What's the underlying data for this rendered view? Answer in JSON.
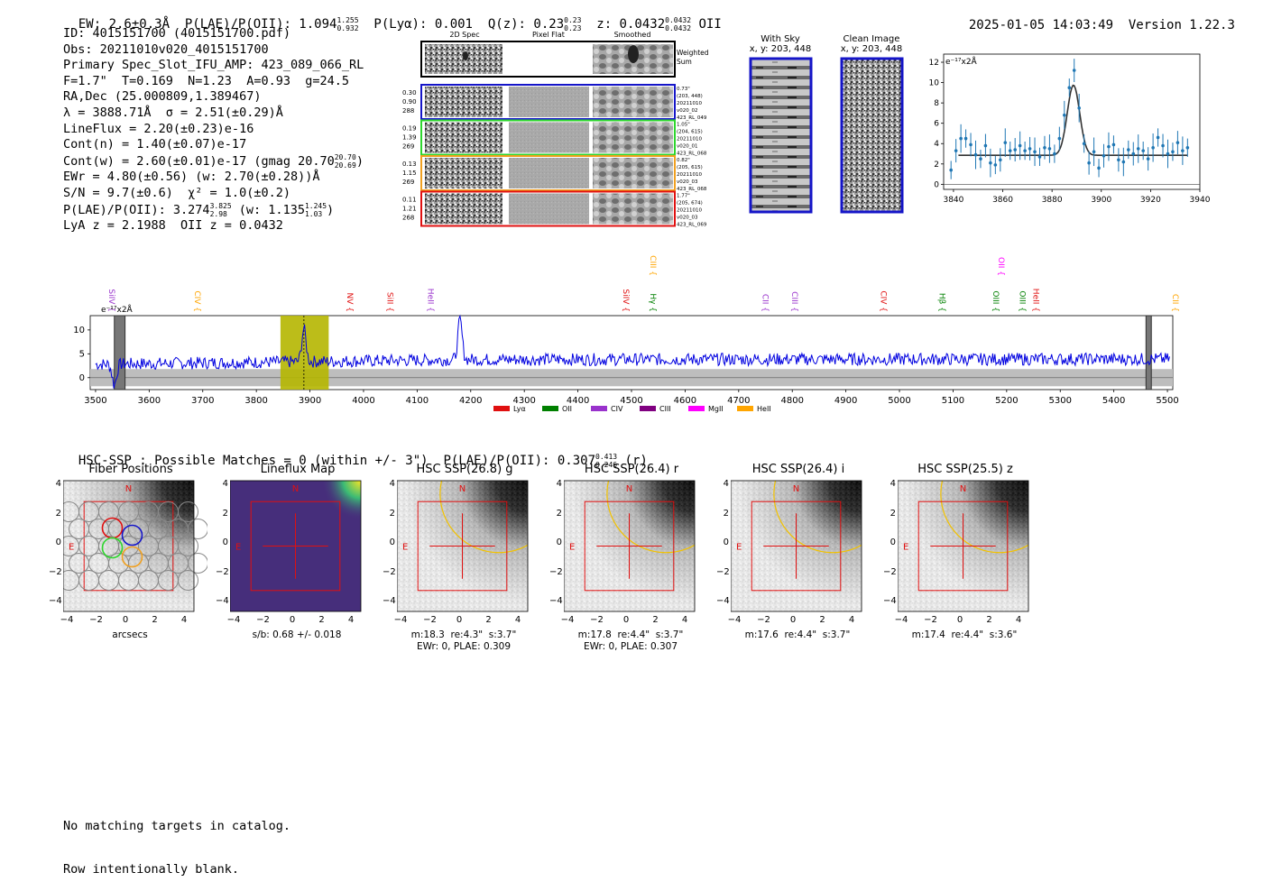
{
  "header": {
    "ew": "EW: 2.6±0.3Å",
    "plae_label": "P(LAE)/P(OII): 1.094",
    "plae_hi": "1.255",
    "plae_lo": "0.932",
    "plya": "P(Lyα): 0.001",
    "qz_label": "Q(z): 0.23",
    "qz_hi": "0.23",
    "qz_lo": "0.23",
    "z_label": "z: 0.0432",
    "z_hi": "0.0432",
    "z_lo": "0.0432",
    "z_line": "OII",
    "timestamp": "2025-01-05 14:03:49",
    "version": "Version 1.22.3"
  },
  "info": {
    "id": "ID: 4015151700 (4015151700.pdf)",
    "obs": "Obs: 20211010v020_4015151700",
    "primary": "Primary Spec_Slot_IFU_AMP: 423_089_066_RL",
    "params": "F=1.7\"  T=0.169  N=1.23  A=0.93  g=24.5",
    "radec": "RA,Dec (25.000809,1.389467)",
    "lambda": "λ = 3888.71Å  σ = 2.51(±0.29)Å",
    "lineflux": "LineFlux = 2.20(±0.23)e-16",
    "contn": "Cont(n) = 1.40(±0.07)e-17",
    "contw": "Cont(w) = 2.60(±0.01)e-17 (gmag 20.70",
    "contw_hi": "20.70",
    "contw_lo": "20.69",
    "ewr": "EWr = 4.80(±0.56) (w: 2.70(±0.28))Å",
    "sn": "S/N = 9.7(±0.6)  χ² = 1.0(±0.2)",
    "plae2": "P(LAE)/P(OII): 3.274",
    "plae2_hi": "3.825",
    "plae2_lo": "2.98",
    "plae2_w": "(w: 1.135",
    "plae2_w_hi": "1.245",
    "plae2_w_lo": "1.03",
    "lyaz": "LyA z = 2.1988  OII z = 0.0432"
  },
  "cutouts": {
    "col_headers": [
      "2D Spec",
      "Pixel Flat",
      "Smoothed"
    ],
    "weighted_label": "Weighted Sum",
    "rows": [
      {
        "left": [
          "0.30",
          "0.90",
          "288"
        ],
        "right": [
          "0.73\"",
          "(203, 448)",
          "20211010",
          "v020_02",
          "423_RL_049"
        ],
        "color": "#1515c8"
      },
      {
        "left": [
          "0.19",
          "1.39",
          "269"
        ],
        "right": [
          "1.05\"",
          "(204, 615)",
          "20211010",
          "v020_01",
          "423_RL_068"
        ],
        "color": "#2ed62e"
      },
      {
        "left": [
          "0.13",
          "1.15",
          "269"
        ],
        "right": [
          "0.82\"",
          "(205, 615)",
          "20211010",
          "v020_03",
          "423_RL_068"
        ],
        "color": "#f0a020"
      },
      {
        "left": [
          "0.11",
          "1.21",
          "268"
        ],
        "right": [
          "1.77\"",
          "(205, 674)",
          "20211010",
          "v020_03",
          "423_RL_069"
        ],
        "color": "#e01010"
      }
    ]
  },
  "sky": {
    "with_sky_title": "With Sky",
    "with_sky_sub": "x, y: 203, 448",
    "clean_title": "Clean Image",
    "clean_sub": "x, y: 203, 448"
  },
  "zoom_chart": {
    "ylabel": "e⁻¹⁷x2Å",
    "xticks": [
      "3840",
      "3860",
      "3880",
      "3900",
      "3920",
      "3940"
    ],
    "yticks": [
      "0",
      "2",
      "4",
      "6",
      "8",
      "10",
      "12"
    ]
  },
  "chart_data": [
    {
      "type": "scatter",
      "xlim": [
        3836,
        3940
      ],
      "ylim": [
        -0.5,
        12.8
      ],
      "x": [
        3839,
        3841,
        3843,
        3845,
        3847,
        3849,
        3851,
        3853,
        3855,
        3857,
        3859,
        3861,
        3863,
        3865,
        3867,
        3869,
        3871,
        3873,
        3875,
        3877,
        3879,
        3881,
        3883,
        3885,
        3887,
        3889,
        3891,
        3893,
        3895,
        3897,
        3899,
        3901,
        3903,
        3905,
        3907,
        3909,
        3911,
        3913,
        3915,
        3917,
        3919,
        3921,
        3923,
        3925,
        3927,
        3929,
        3931,
        3933,
        3935
      ],
      "y": [
        1.4,
        3.3,
        4.5,
        4.5,
        3.9,
        2.9,
        2.5,
        3.8,
        2.1,
        1.9,
        2.4,
        4.1,
        3.3,
        3.4,
        3.8,
        3.3,
        3.5,
        3.2,
        2.7,
        3.6,
        3.5,
        3.0,
        4.5,
        6.8,
        9.5,
        11.2,
        7.5,
        4.0,
        2.1,
        3.2,
        1.6,
        2.8,
        3.7,
        3.9,
        2.4,
        2.2,
        3.4,
        3.0,
        3.5,
        3.3,
        2.5,
        3.6,
        4.6,
        3.8,
        3.0,
        3.2,
        4.1,
        3.3,
        3.6
      ],
      "fit": {
        "continuum": 2.85,
        "amplitude": 6.9,
        "center": 3888.7,
        "sigma": 2.51
      }
    },
    {
      "type": "line",
      "title": "",
      "xlim": [
        3490,
        5510
      ],
      "ylim": [
        -2.5,
        13
      ],
      "xticks": [
        3500,
        3600,
        3700,
        3800,
        3900,
        4000,
        4100,
        4200,
        4300,
        4400,
        4500,
        4600,
        4700,
        4800,
        4900,
        5000,
        5100,
        5200,
        5300,
        5400,
        5500
      ],
      "yticks": [
        0,
        5,
        10
      ],
      "ylabel": "e⁻¹⁷x2Å",
      "highlight_range": [
        3845,
        3935
      ],
      "line_at": 3888.71,
      "masked_ranges": [
        [
          3535,
          3555
        ],
        [
          5460,
          5470
        ]
      ],
      "error_band": 1.8,
      "spectrum_features": [
        {
          "x": 3535,
          "y": -1.5
        },
        {
          "x": 3888.7,
          "y": 10.2
        },
        {
          "x": 4180,
          "y": 12.0
        }
      ],
      "continuum_level": [
        {
          "x": 3500,
          "y": 2.8
        },
        {
          "x": 4200,
          "y": 3.8
        },
        {
          "x": 5500,
          "y": 3.9
        }
      ],
      "legend": [
        "Lyα",
        "OII",
        "CIV",
        "CIII",
        "MgII",
        "HeII"
      ],
      "legend_colors": [
        "#e01010",
        "#008000",
        "#9932cc",
        "#800080",
        "#ff00ff",
        "#ffa500"
      ],
      "line_labels": [
        {
          "name": "SiIV",
          "x": 3520,
          "color": "#9932cc",
          "row": 1
        },
        {
          "name": "CIV",
          "x": 3680,
          "color": "#ffa500",
          "row": 1
        },
        {
          "name": "NV",
          "x": 3965,
          "color": "#e01010",
          "row": 1
        },
        {
          "name": "SiII",
          "x": 4040,
          "color": "#e01010",
          "row": 1
        },
        {
          "name": "HeII",
          "x": 4115,
          "color": "#9932cc",
          "row": 1
        },
        {
          "name": "SiIV",
          "x": 4480,
          "color": "#e01010",
          "row": 1
        },
        {
          "name": "CIII",
          "x": 4530,
          "color": "#ffa500",
          "row": 0
        },
        {
          "name": "Hγ",
          "x": 4530,
          "color": "#008000",
          "row": 1
        },
        {
          "name": "CII",
          "x": 4740,
          "color": "#9932cc",
          "row": 1
        },
        {
          "name": "CIII",
          "x": 4795,
          "color": "#9932cc",
          "row": 1
        },
        {
          "name": "CIV",
          "x": 4960,
          "color": "#e01010",
          "row": 1
        },
        {
          "name": "Hβ",
          "x": 5070,
          "color": "#008000",
          "row": 1
        },
        {
          "name": "OII",
          "x": 5180,
          "color": "#ff00ff",
          "row": 0
        },
        {
          "name": "OIII",
          "x": 5170,
          "color": "#008000",
          "row": 1
        },
        {
          "name": "OIII",
          "x": 5220,
          "color": "#008000",
          "row": 1
        },
        {
          "name": "HeII",
          "x": 5245,
          "color": "#e01010",
          "row": 1
        },
        {
          "name": "CII",
          "x": 5505,
          "color": "#ffa500",
          "row": 1
        }
      ]
    }
  ],
  "hsc": {
    "title": "HSC-SSP : Possible Matches = 0 (within +/- 3\")  P(LAE)/P(OII): 0.307",
    "hi": "0.413",
    "lo": "0.246",
    "band": "(r)",
    "panels": [
      {
        "title": "Fiber Positions",
        "below": [
          "arcsecs"
        ],
        "kind": "fiber"
      },
      {
        "title": "Lineflux Map",
        "below": [
          "s/b: 0.68 +/- 0.018"
        ],
        "kind": "flux"
      },
      {
        "title": "HSC SSP(26.8) g",
        "below": [
          "m:18.3  re:4.3\"  s:3.7\"",
          "EWr: 0, PLAE: 0.309"
        ],
        "kind": "img"
      },
      {
        "title": "HSC SSP(26.4) r",
        "below": [
          "m:17.8  re:4.4\"  s:3.7\"",
          "EWr: 0, PLAE: 0.307"
        ],
        "kind": "img"
      },
      {
        "title": "HSC SSP(26.4) i",
        "below": [
          "m:17.6  re:4.4\"  s:3.7\""
        ],
        "kind": "img"
      },
      {
        "title": "HSC SSP(25.5) z",
        "below": [
          "m:17.4  re:4.4\"  s:3.6\""
        ],
        "kind": "img"
      }
    ],
    "ticks": [
      "4",
      "2",
      "0",
      "−2",
      "−4"
    ],
    "xticks": [
      "−4",
      "−2",
      "0",
      "2",
      "4"
    ],
    "compass_n": "N",
    "compass_e": "E"
  },
  "footer": {
    "line1": "No matching targets in catalog.",
    "line2": "Row intentionally blank."
  }
}
